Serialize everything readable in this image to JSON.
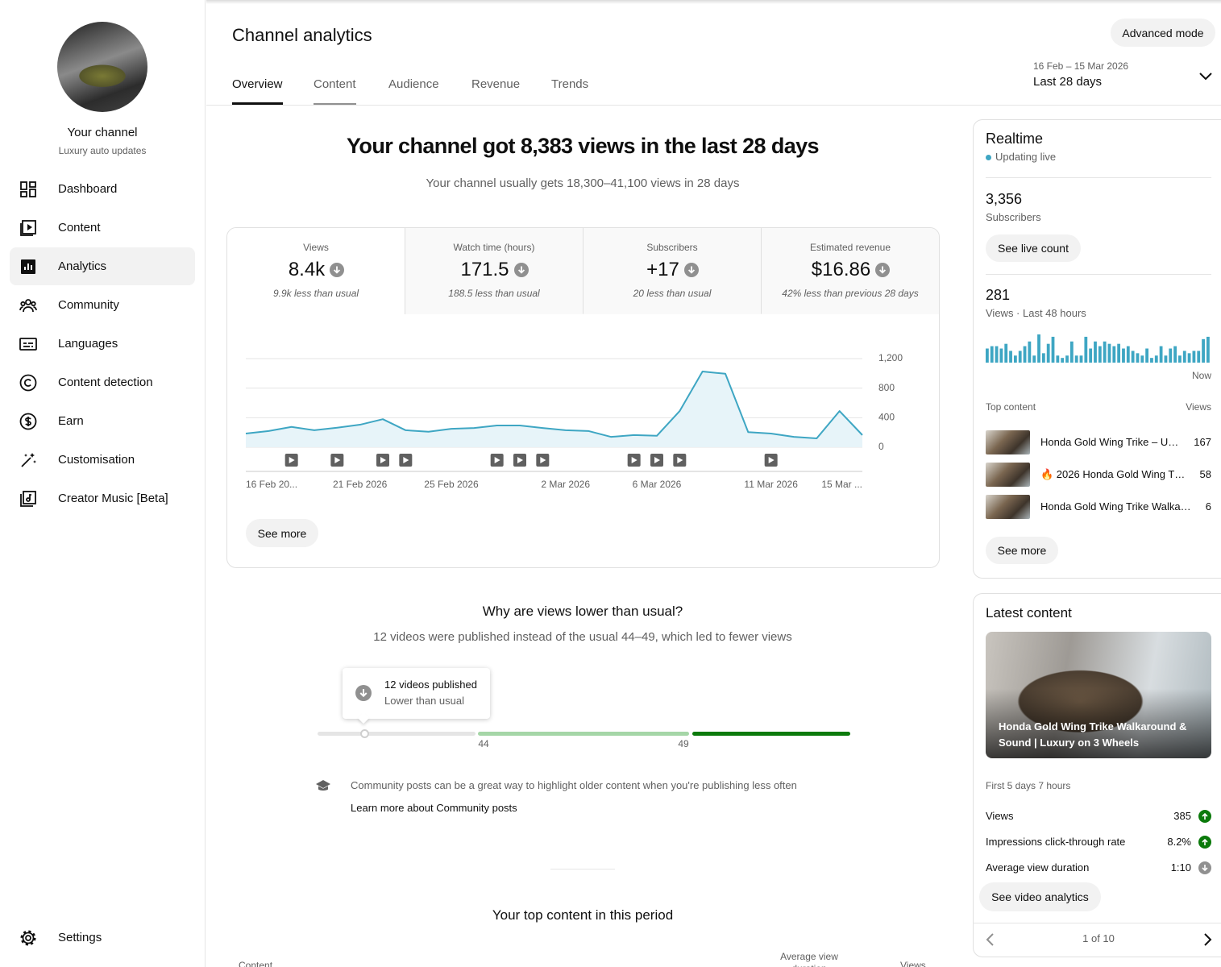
{
  "sidebar": {
    "channel_name": "Your channel",
    "channel_tagline": "Luxury auto updates",
    "nav": [
      {
        "label": "Dashboard"
      },
      {
        "label": "Content"
      },
      {
        "label": "Analytics",
        "active": true
      },
      {
        "label": "Community"
      },
      {
        "label": "Languages"
      },
      {
        "label": "Content detection"
      },
      {
        "label": "Earn"
      },
      {
        "label": "Customisation"
      },
      {
        "label": "Creator Music [Beta]"
      }
    ],
    "settings": "Settings"
  },
  "header": {
    "title": "Channel analytics",
    "tabs": [
      {
        "label": "Overview",
        "selected": true
      },
      {
        "label": "Content",
        "hover": true
      },
      {
        "label": "Audience"
      },
      {
        "label": "Revenue"
      },
      {
        "label": "Trends"
      }
    ],
    "advanced_button": "Advanced mode",
    "date_range": "16 Feb – 15 Mar 2026",
    "period": "Last 28 days"
  },
  "summary": {
    "headline": "Your channel got 8,383 views in the last 28 days",
    "typical": "Your channel usually gets 18,300–41,100 views in 28 days"
  },
  "metrics": [
    {
      "label": "Views",
      "value": "8.4k",
      "note": "9.9k less than usual",
      "selected": true
    },
    {
      "label": "Watch time (hours)",
      "value": "171.5",
      "note": "188.5 less than usual"
    },
    {
      "label": "Subscribers",
      "value": "+17",
      "note": "20 less than usual"
    },
    {
      "label": "Estimated revenue",
      "value": "$16.86",
      "note": "42% less than previous 28 days"
    }
  ],
  "chart": {
    "type": "line",
    "x_labels": [
      "16 Feb 20...",
      null,
      null,
      null,
      null,
      "21 Feb 2026",
      null,
      null,
      null,
      "25 Feb 2026",
      null,
      null,
      null,
      null,
      "2 Mar 2026",
      null,
      null,
      null,
      "6 Mar 2026",
      null,
      null,
      null,
      null,
      "11 Mar 2026",
      null,
      null,
      null,
      "15 Mar ..."
    ],
    "values": [
      185,
      220,
      275,
      230,
      265,
      305,
      380,
      230,
      210,
      250,
      260,
      295,
      295,
      260,
      230,
      220,
      140,
      165,
      155,
      490,
      1025,
      995,
      205,
      185,
      140,
      120,
      490,
      165
    ],
    "ylim": [
      0,
      1200
    ],
    "yticks": [
      0,
      400,
      800,
      {
        "value": 1200,
        "label": "1,200"
      }
    ],
    "color": "#3ea6c3",
    "grid": true,
    "button": "See more"
  },
  "insight": {
    "title": "Why are views lower than usual?",
    "text": "12 videos were published instead of the usual 44–49, which led to fewer views",
    "tooltip_title": "12 videos published",
    "tooltip_sub": "Lower than usual",
    "usual_low": "44",
    "usual_high": "49",
    "tip": "Community posts can be a great way to highlight older content when you're publishing less often",
    "tip_link": "Learn more about Community posts"
  },
  "top_content": {
    "title": "Your top content in this period",
    "columns": [
      "Content",
      "Average view duration",
      "Views"
    ]
  },
  "realtime": {
    "title": "Realtime",
    "live": "Updating live",
    "subscribers": "3,356",
    "subscribers_label": "Subscribers",
    "live_count_button": "See live count",
    "views": "281",
    "views_label": "Views · Last 48 hours",
    "bars": {
      "values": [
        6,
        7,
        7,
        6,
        8,
        5,
        3,
        5,
        7,
        9,
        3,
        12,
        4,
        8,
        11,
        3,
        2,
        3,
        9,
        3,
        3,
        11,
        6,
        9,
        7,
        9,
        8,
        7,
        8,
        6,
        7,
        5,
        4,
        3,
        6,
        2,
        3,
        7,
        3,
        6,
        7,
        3,
        5,
        4,
        5,
        5,
        10,
        11
      ],
      "color": "#3ea6c3"
    },
    "now_label": "Now",
    "top_label": "Top content",
    "views_column": "Views",
    "items": [
      {
        "title": "Honda Gold Wing Trike – U…",
        "views": "167"
      },
      {
        "title": "🔥 2026 Honda Gold Wing T…",
        "views": "58"
      },
      {
        "title": "Honda Gold Wing Trike Walka…",
        "views": "6"
      }
    ],
    "see_more": "See more"
  },
  "latest": {
    "title": "Latest content",
    "video_title": "Honda Gold Wing Trike Walkaround & Sound | Luxury on 3 Wheels",
    "period": "First 5 days 7 hours",
    "stats": [
      {
        "label": "Views",
        "value": "385",
        "trend": "up"
      },
      {
        "label": "Impressions click-through rate",
        "value": "8.2%",
        "trend": "up"
      },
      {
        "label": "Average view duration",
        "value": "1:10",
        "trend": "down"
      }
    ],
    "button": "See video analytics",
    "pager": "1 of 10"
  }
}
